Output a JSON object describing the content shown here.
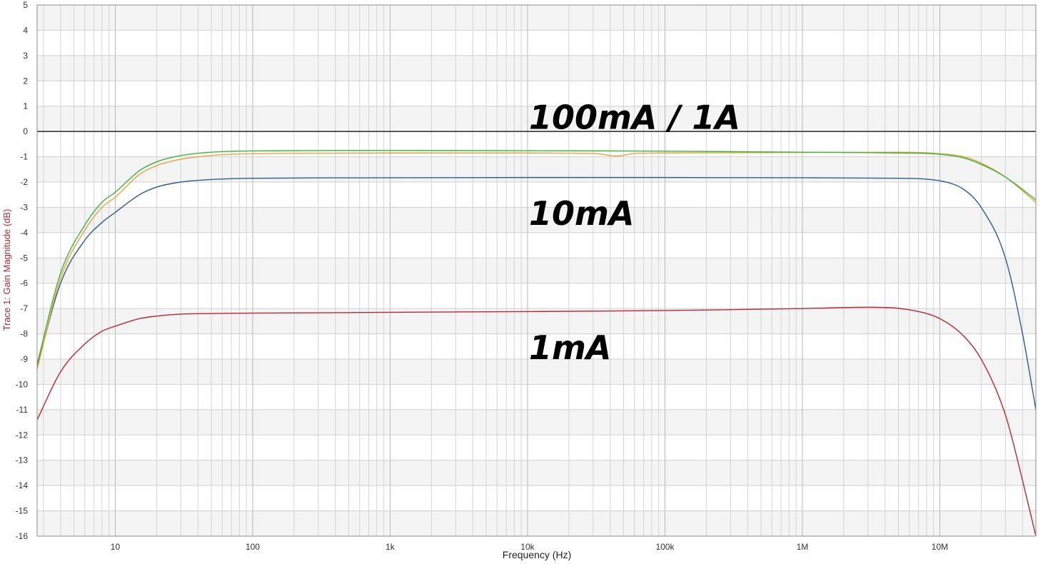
{
  "chart_data": {
    "type": "line",
    "xscale": "log",
    "xlim": [
      2.7,
      50000000
    ],
    "ylim": [
      -16,
      5
    ],
    "xlabel": "Frequency (Hz)",
    "ylabel": "Trace 1: Gain Magnitude (dB)",
    "grid": true,
    "x_tick_labels": [
      {
        "value": 10,
        "label": "10"
      },
      {
        "value": 100,
        "label": "100"
      },
      {
        "value": 1000,
        "label": "1k"
      },
      {
        "value": 10000,
        "label": "10k"
      },
      {
        "value": 100000,
        "label": "100k"
      },
      {
        "value": 1000000,
        "label": "1M"
      },
      {
        "value": 10000000,
        "label": "10M"
      }
    ],
    "y_ticks": [
      5,
      4,
      3,
      2,
      1,
      0,
      -1,
      -2,
      -3,
      -4,
      -5,
      -6,
      -7,
      -8,
      -9,
      -10,
      -11,
      -12,
      -13,
      -14,
      -15,
      -16
    ],
    "reference_line_y": 0,
    "series": [
      {
        "color": "#b5283a",
        "x": [
          2.7,
          4,
          6,
          8,
          10,
          15,
          20,
          30,
          50,
          100,
          300,
          1000,
          10000,
          100000,
          1000000,
          3000000,
          6000000,
          10000000,
          15000000,
          20000000,
          30000000,
          40000000,
          50000000
        ],
        "y": [
          -11.4,
          -9.5,
          -8.4,
          -7.9,
          -7.7,
          -7.4,
          -7.3,
          -7.22,
          -7.2,
          -7.18,
          -7.17,
          -7.15,
          -7.12,
          -7.08,
          -7.0,
          -6.95,
          -7.05,
          -7.4,
          -8.1,
          -9.0,
          -11.2,
          -13.8,
          -16.0
        ]
      },
      {
        "color": "#2e5b8f",
        "x": [
          2.7,
          4,
          6,
          8,
          10,
          15,
          20,
          30,
          50,
          100,
          1000,
          10000,
          100000,
          1000000,
          5000000,
          10000000,
          15000000,
          20000000,
          30000000,
          40000000,
          50000000
        ],
        "y": [
          -9.3,
          -6.0,
          -4.3,
          -3.6,
          -3.2,
          -2.5,
          -2.2,
          -2.0,
          -1.9,
          -1.85,
          -1.83,
          -1.82,
          -1.82,
          -1.83,
          -1.85,
          -1.95,
          -2.3,
          -3.0,
          -5.0,
          -8.0,
          -11.0
        ]
      },
      {
        "color": "#e8a33c",
        "x": [
          2.7,
          4,
          6,
          8,
          10,
          15,
          20,
          30,
          50,
          100,
          1000,
          10000,
          30000,
          45000,
          60000,
          100000,
          1000000,
          5000000,
          10000000,
          15000000,
          20000000,
          30000000,
          50000000
        ],
        "y": [
          -9.4,
          -5.8,
          -3.9,
          -3.0,
          -2.6,
          -1.7,
          -1.35,
          -1.1,
          -0.95,
          -0.88,
          -0.85,
          -0.85,
          -0.87,
          -0.97,
          -0.87,
          -0.85,
          -0.83,
          -0.82,
          -0.88,
          -1.0,
          -1.25,
          -1.8,
          -2.8
        ]
      },
      {
        "color": "#3cb33c",
        "x": [
          2.7,
          4,
          6,
          8,
          10,
          15,
          20,
          30,
          50,
          100,
          1000,
          10000,
          100000,
          1000000,
          5000000,
          10000000,
          15000000,
          20000000,
          30000000,
          50000000
        ],
        "y": [
          -9.2,
          -5.6,
          -3.7,
          -2.8,
          -2.4,
          -1.55,
          -1.2,
          -0.95,
          -0.82,
          -0.77,
          -0.75,
          -0.76,
          -0.78,
          -0.82,
          -0.85,
          -0.9,
          -1.05,
          -1.3,
          -1.8,
          -2.7
        ]
      }
    ],
    "annotations": [
      {
        "text": "100mA / 1A",
        "x": 10000,
        "y": 0.1
      },
      {
        "text": "10mA",
        "x": 10000,
        "y": -3.7
      },
      {
        "text": "1mA",
        "x": 10000,
        "y": -9.0
      }
    ]
  }
}
